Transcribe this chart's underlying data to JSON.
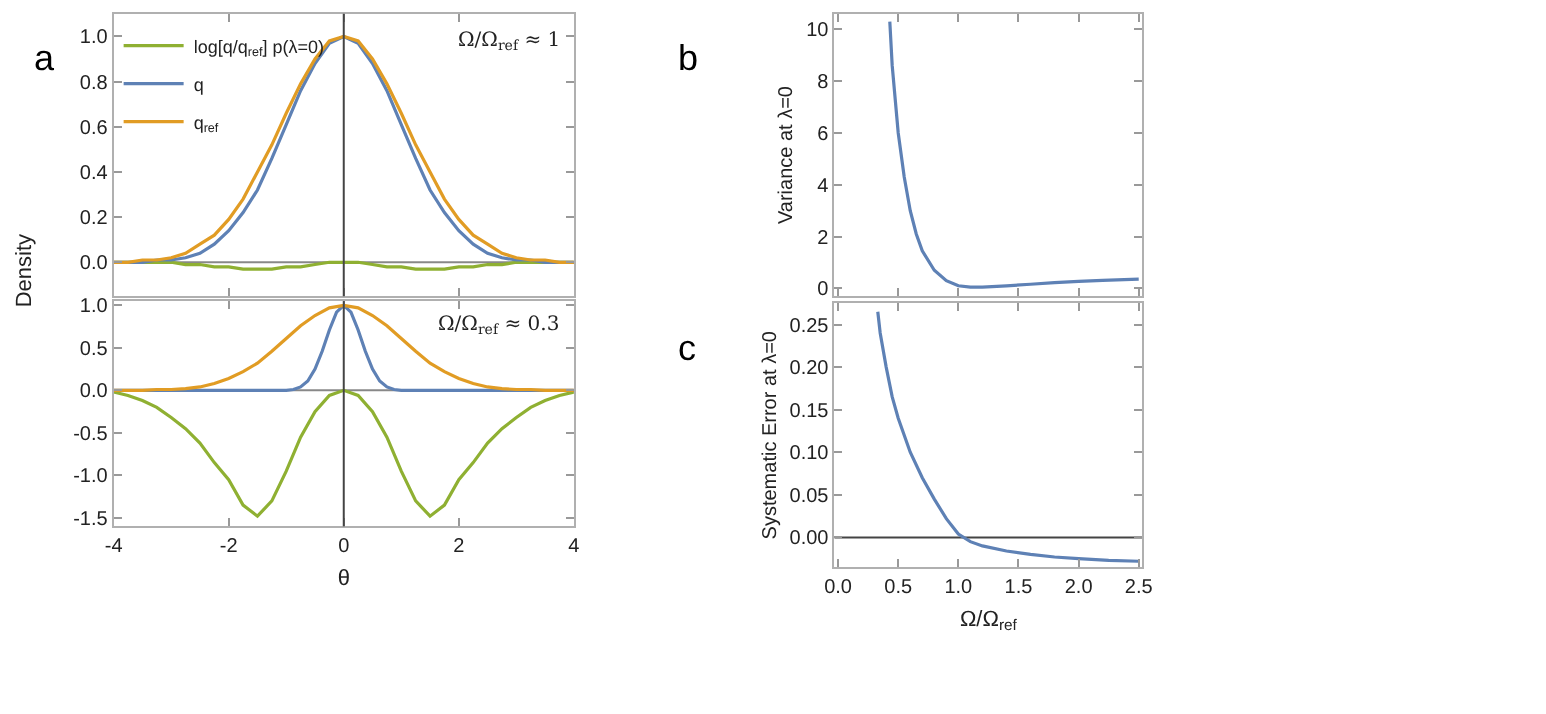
{
  "chart_data": [
    {
      "type": "line",
      "title": "a",
      "ylabel": "Density",
      "legend": "top left",
      "tick_labels": "y",
      "grid": false,
      "annotations": [
        "Ω/Ω$_{ref}$ ≈ 1"
      ],
      "xlim": [
        -4,
        4
      ],
      "ylim": [
        -0.15,
        1.1
      ],
      "xticks": [
        -4,
        -2,
        0,
        2,
        4
      ],
      "yticks": [
        {
          "value": 0.0,
          "label": "0.0"
        },
        {
          "value": 0.2,
          "label": "0.2"
        },
        {
          "value": 0.4,
          "label": "0.4"
        },
        {
          "value": 0.6,
          "label": "0.6"
        },
        {
          "value": 0.8,
          "label": "0.8"
        },
        {
          "value": 1.0,
          "label": "1.0"
        }
      ],
      "ref_lines": [
        {
          "axis": "x",
          "value": 0,
          "color": "#444444"
        },
        {
          "axis": "y",
          "value": 0,
          "color": "#888888"
        }
      ],
      "x": [
        -4,
        -3.75,
        -3.5,
        -3.25,
        -3,
        -2.75,
        -2.5,
        -2.25,
        -2,
        -1.75,
        -1.5,
        -1.25,
        -1,
        -0.75,
        -0.5,
        -0.25,
        0,
        0.25,
        0.5,
        0.75,
        1,
        1.25,
        1.5,
        1.75,
        2,
        2.25,
        2.5,
        2.75,
        3,
        3.25,
        3.5,
        3.75,
        4
      ],
      "series": [
        {
          "name": "log[q/q$_{ref}$] p(λ=0)",
          "color": "#8fb032",
          "values": [
            0,
            0,
            0,
            0,
            0,
            -0.01,
            -0.01,
            -0.02,
            -0.02,
            -0.03,
            -0.03,
            -0.03,
            -0.02,
            -0.02,
            -0.01,
            0,
            0,
            0,
            -0.01,
            -0.02,
            -0.02,
            -0.03,
            -0.03,
            -0.03,
            -0.02,
            -0.02,
            -0.01,
            -0.01,
            0,
            0,
            0,
            0,
            0
          ]
        },
        {
          "name": "q",
          "color": "#5e81b5",
          "values": [
            0,
            0,
            0,
            0.01,
            0.01,
            0.02,
            0.04,
            0.08,
            0.14,
            0.22,
            0.32,
            0.46,
            0.61,
            0.76,
            0.88,
            0.97,
            1.0,
            0.97,
            0.88,
            0.76,
            0.61,
            0.46,
            0.32,
            0.22,
            0.14,
            0.08,
            0.04,
            0.02,
            0.01,
            0.01,
            0,
            0,
            0
          ]
        },
        {
          "name": "q$_{ref}$",
          "color": "#e19c24",
          "values": [
            0,
            0,
            0.01,
            0.01,
            0.02,
            0.04,
            0.08,
            0.12,
            0.19,
            0.28,
            0.4,
            0.52,
            0.66,
            0.79,
            0.9,
            0.98,
            1.0,
            0.98,
            0.9,
            0.79,
            0.66,
            0.52,
            0.4,
            0.28,
            0.19,
            0.12,
            0.08,
            0.04,
            0.02,
            0.01,
            0.01,
            0,
            0
          ]
        }
      ]
    },
    {
      "type": "line",
      "xlabel": "θ",
      "grid": false,
      "legend": false,
      "annotations": [
        "Ω/Ω$_{ref}$ ≈ 0.3"
      ],
      "xlim": [
        -4,
        4
      ],
      "ylim": [
        -1.6,
        1.05
      ],
      "xticks": [
        -4,
        -2,
        0,
        2,
        4
      ],
      "yticks": [
        {
          "value": -1.5,
          "label": "-1.5"
        },
        {
          "value": -1.0,
          "label": "-1.0"
        },
        {
          "value": -0.5,
          "label": "-0.5"
        },
        {
          "value": 0.0,
          "label": "0.0"
        },
        {
          "value": 0.5,
          "label": "0.5"
        },
        {
          "value": 1.0,
          "label": "1.0"
        }
      ],
      "ref_lines": [
        {
          "axis": "x",
          "value": 0,
          "color": "#444444"
        },
        {
          "axis": "y",
          "value": 0,
          "color": "#888888"
        }
      ],
      "x": [
        -4,
        -3.75,
        -3.5,
        -3.25,
        -3,
        -2.75,
        -2.5,
        -2.25,
        -2,
        -1.75,
        -1.5,
        -1.25,
        -1,
        -0.75,
        -0.5,
        -0.25,
        0,
        0.25,
        0.5,
        0.75,
        1,
        1.25,
        1.5,
        1.75,
        2,
        2.25,
        2.5,
        2.75,
        3,
        3.25,
        3.5,
        3.75,
        4
      ],
      "series": [
        {
          "color": "#8fb032",
          "values": [
            -0.02,
            -0.06,
            -0.12,
            -0.2,
            -0.32,
            -0.45,
            -0.62,
            -0.85,
            -1.05,
            -1.35,
            -1.48,
            -1.3,
            -0.95,
            -0.55,
            -0.25,
            -0.06,
            0,
            -0.06,
            -0.25,
            -0.55,
            -0.95,
            -1.3,
            -1.48,
            -1.35,
            -1.05,
            -0.85,
            -0.62,
            -0.45,
            -0.32,
            -0.2,
            -0.12,
            -0.06,
            -0.02
          ]
        },
        {
          "color": "#5e81b5",
          "x": [
            -4,
            -1.25,
            -1,
            -0.875,
            -0.75,
            -0.625,
            -0.5,
            -0.375,
            -0.25,
            -0.125,
            0,
            0.125,
            0.25,
            0.375,
            0.5,
            0.625,
            0.75,
            0.875,
            1,
            1.25,
            4
          ],
          "values": [
            0,
            0,
            0,
            0.01,
            0.04,
            0.11,
            0.25,
            0.46,
            0.71,
            0.92,
            1.0,
            0.92,
            0.71,
            0.46,
            0.25,
            0.11,
            0.04,
            0.01,
            0,
            0,
            0
          ]
        },
        {
          "color": "#e19c24",
          "values": [
            0,
            0,
            0,
            0.01,
            0.01,
            0.02,
            0.04,
            0.08,
            0.14,
            0.22,
            0.32,
            0.46,
            0.61,
            0.76,
            0.88,
            0.97,
            1.0,
            0.97,
            0.88,
            0.76,
            0.61,
            0.46,
            0.32,
            0.22,
            0.14,
            0.08,
            0.04,
            0.02,
            0.01,
            0.01,
            0,
            0,
            0
          ]
        }
      ]
    },
    {
      "type": "line",
      "title": "b",
      "ylabel": "Variance at λ=0",
      "tick_labels": "y",
      "grid": false,
      "legend": false,
      "xlim": [
        -0.03,
        2.53
      ],
      "ylim": [
        -0.3,
        10.6
      ],
      "xticks": [
        0,
        0.5,
        1,
        1.5,
        2,
        2.5
      ],
      "yticks": [
        0,
        2,
        4,
        6,
        8,
        10
      ],
      "x": [
        0.43,
        0.45,
        0.5,
        0.55,
        0.6,
        0.65,
        0.7,
        0.8,
        0.9,
        1.0,
        1.1,
        1.2,
        1.4,
        1.6,
        1.8,
        2.0,
        2.2,
        2.5
      ],
      "series": [
        {
          "color": "#5e81b5",
          "values": [
            10.3,
            8.6,
            6.0,
            4.3,
            3.0,
            2.1,
            1.45,
            0.7,
            0.3,
            0.1,
            0.05,
            0.05,
            0.1,
            0.16,
            0.22,
            0.27,
            0.31,
            0.36
          ]
        }
      ]
    },
    {
      "type": "line",
      "title": "c",
      "xlabel": "Ω/Ω$_{ref}$",
      "ylabel": "Systematic Error at λ=0",
      "grid": false,
      "legend": false,
      "xlim": [
        -0.03,
        2.53
      ],
      "ylim": [
        -0.035,
        0.275
      ],
      "xticks": [
        {
          "value": 0,
          "label": "0.0"
        },
        0.5,
        {
          "value": 1,
          "label": "1.0"
        },
        1.5,
        {
          "value": 2,
          "label": "2.0"
        },
        2.5
      ],
      "yticks": [
        {
          "value": 0,
          "label": "0.00"
        },
        0.05,
        {
          "value": 0.1,
          "label": "0.10"
        },
        0.15,
        {
          "value": 0.2,
          "label": "0.20"
        },
        0.25
      ],
      "ref_lines": [
        {
          "axis": "y",
          "value": 0,
          "color": "#444444"
        }
      ],
      "x": [
        0.33,
        0.35,
        0.4,
        0.45,
        0.5,
        0.6,
        0.7,
        0.8,
        0.9,
        1.0,
        1.1,
        1.2,
        1.4,
        1.6,
        1.8,
        2.0,
        2.25,
        2.5
      ],
      "series": [
        {
          "color": "#5e81b5",
          "values": [
            0.265,
            0.24,
            0.2,
            0.165,
            0.14,
            0.1,
            0.07,
            0.045,
            0.022,
            0.004,
            -0.005,
            -0.01,
            -0.016,
            -0.02,
            -0.023,
            -0.025,
            -0.027,
            -0.028
          ]
        }
      ]
    }
  ]
}
